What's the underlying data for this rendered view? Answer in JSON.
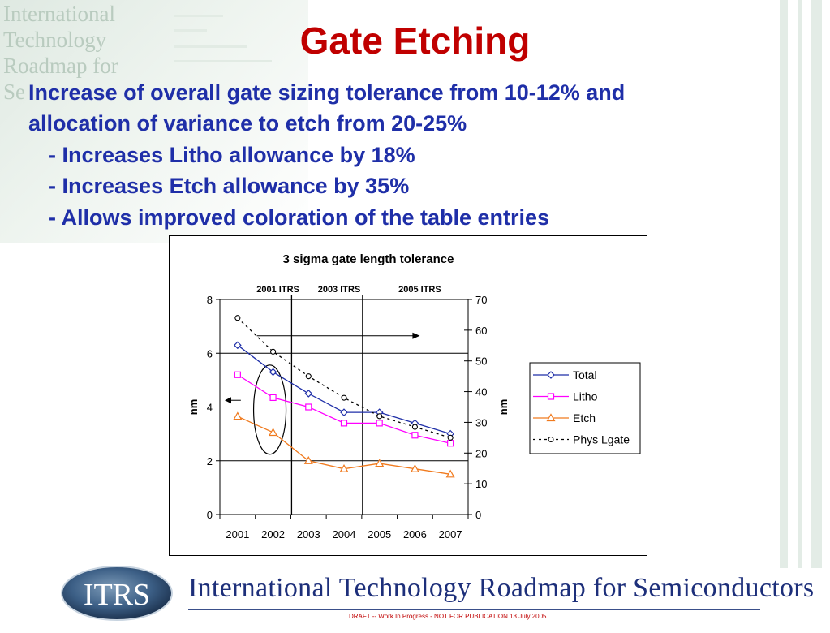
{
  "slide": {
    "title": "Gate Etching",
    "body_lines": [
      "Increase of overall gate sizing tolerance from 10-12% and",
      "allocation of variance to etch from 20-25%",
      "- Increases Litho allowance by 18%",
      "- Increases Etch allowance by 35%",
      "- Allows improved coloration of the table entries"
    ]
  },
  "background": {
    "watermark_lines": [
      "International",
      "Technology",
      "Roadmap for",
      "Se"
    ]
  },
  "chart_data": {
    "type": "line",
    "title": "3 sigma gate length tolerance",
    "categories": [
      "2001",
      "2002",
      "2003",
      "2004",
      "2005",
      "2006",
      "2007"
    ],
    "ylabel_left": "nm",
    "ylabel_right": "nm",
    "ylim_left": [
      0,
      8
    ],
    "yticks_left": [
      "0",
      "2",
      "4",
      "6",
      "8"
    ],
    "ylim_right": [
      0,
      70
    ],
    "yticks_right": [
      "0",
      "10",
      "20",
      "30",
      "40",
      "50",
      "60",
      "70"
    ],
    "grid": "horizontal",
    "legend_position": "right",
    "region_labels": [
      "2001 ITRS",
      "2003 ITRS",
      "2005 ITRS"
    ],
    "series": [
      {
        "name": "Total",
        "axis": "left",
        "color": "#1f2fa8",
        "marker": "diamond",
        "dash": "solid",
        "values": [
          6.3,
          5.3,
          4.5,
          3.8,
          3.8,
          3.4,
          3.0
        ]
      },
      {
        "name": " Litho",
        "axis": "left",
        "color": "#ff00ff",
        "marker": "square",
        "dash": "solid",
        "values": [
          5.2,
          4.35,
          4.0,
          3.4,
          3.4,
          2.95,
          2.65
        ]
      },
      {
        "name": "Etch",
        "axis": "left",
        "color": "#f07a1e",
        "marker": "triangle",
        "dash": "solid",
        "values": [
          3.65,
          3.05,
          2.0,
          1.7,
          1.9,
          1.7,
          1.5
        ]
      },
      {
        "name": "Phys Lgate",
        "axis": "right",
        "color": "#000000",
        "marker": "circle",
        "dash": "dotted",
        "values": [
          64,
          53,
          45,
          38,
          32,
          28.5,
          25
        ]
      }
    ],
    "colors": {
      "frame": "#000000",
      "gridline": "#000000"
    }
  },
  "footer": {
    "logo_text": "ITRS",
    "name": "International Technology Roadmap for Semiconductors",
    "note": "DRAFT -- Work In Progress - NOT FOR PUBLICATION     13 July 2005"
  }
}
